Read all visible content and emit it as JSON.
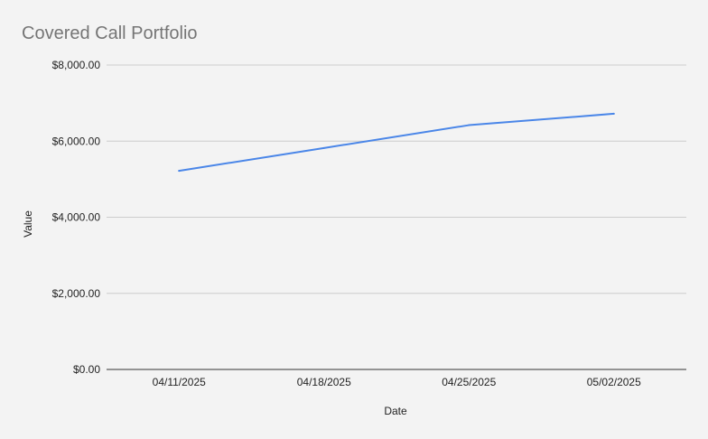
{
  "chart_data": {
    "type": "line",
    "title": "Covered Call Portfolio",
    "xlabel": "Date",
    "ylabel": "Value",
    "categories": [
      "04/11/2025",
      "04/18/2025",
      "04/25/2025",
      "05/02/2025"
    ],
    "series": [
      {
        "values": [
          5220,
          5820,
          6420,
          6720
        ]
      }
    ],
    "ylim": [
      0,
      8000
    ],
    "yticks": [
      0,
      2000,
      4000,
      6000,
      8000
    ],
    "ytick_labels": [
      "$0.00",
      "$2,000.00",
      "$4,000.00",
      "$6,000.00",
      "$8,000.00"
    ],
    "grid": true,
    "legend": "none",
    "colors": {
      "series": "#4a86e8",
      "grid": "#cccccc",
      "background": "#f3f3f3"
    }
  }
}
